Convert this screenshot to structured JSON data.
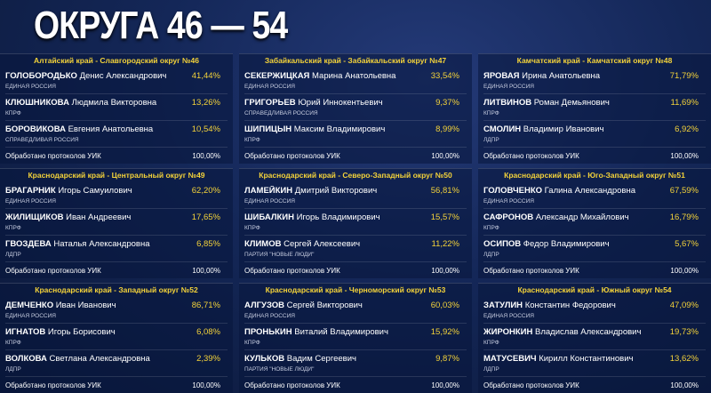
{
  "title": "ОКРУГА 46 — 54",
  "districts": [
    {
      "header": "Алтайский край - Славгородский округ №46",
      "candidates": [
        {
          "surname": "ГОЛОБОРОДЬКО",
          "name": "Денис Александрович",
          "party": "ЕДИНАЯ РОССИЯ",
          "percent": "41,44%"
        },
        {
          "surname": "КЛЮШНИКОВА",
          "name": "Людмила Викторовна",
          "party": "КПРФ",
          "percent": "13,26%"
        },
        {
          "surname": "БОРОВИКОВА",
          "name": "Евгения Анатольевна",
          "party": "СПРАВЕДЛИВАЯ РОССИЯ",
          "percent": "10,54%"
        }
      ],
      "protocols_label": "Обработано протоколов УИК",
      "protocols_value": "100,00%"
    },
    {
      "header": "Забайкальский край - Забайкальский округ №47",
      "candidates": [
        {
          "surname": "СЕКЕРЖИЦКАЯ",
          "name": "Марина Анатольевна",
          "party": "ЕДИНАЯ РОССИЯ",
          "percent": "33,54%"
        },
        {
          "surname": "ГРИГОРЬЕВ",
          "name": "Юрий Иннокентьевич",
          "party": "СПРАВЕДЛИВАЯ РОССИЯ",
          "percent": "9,37%"
        },
        {
          "surname": "ШИПИЦЫН",
          "name": "Максим Владимирович",
          "party": "КПРФ",
          "percent": "8,99%"
        }
      ],
      "protocols_label": "Обработано протоколов УИК",
      "protocols_value": "100,00%"
    },
    {
      "header": "Камчатский край - Камчатский округ №48",
      "candidates": [
        {
          "surname": "ЯРОВАЯ",
          "name": "Ирина Анатольевна",
          "party": "ЕДИНАЯ РОССИЯ",
          "percent": "71,79%"
        },
        {
          "surname": "ЛИТВИНОВ",
          "name": "Роман Демьянович",
          "party": "КПРФ",
          "percent": "11,69%"
        },
        {
          "surname": "СМОЛИН",
          "name": "Владимир Иванович",
          "party": "ЛДПР",
          "percent": "6,92%"
        }
      ],
      "protocols_label": "Обработано протоколов УИК",
      "protocols_value": "100,00%"
    },
    {
      "header": "Краснодарский край - Центральный округ №49",
      "candidates": [
        {
          "surname": "БРАГАРНИК",
          "name": "Игорь Самуилович",
          "party": "ЕДИНАЯ РОССИЯ",
          "percent": "62,20%"
        },
        {
          "surname": "ЖИЛИЩИКОВ",
          "name": "Иван Андреевич",
          "party": "КПРФ",
          "percent": "17,65%"
        },
        {
          "surname": "ГВОЗДЕВА",
          "name": "Наталья Александровна",
          "party": "ЛДПР",
          "percent": "6,85%"
        }
      ],
      "protocols_label": "Обработано протоколов УИК",
      "protocols_value": "100,00%"
    },
    {
      "header": "Краснодарский край - Северо-Западный округ №50",
      "candidates": [
        {
          "surname": "ЛАМЕЙКИН",
          "name": "Дмитрий Викторович",
          "party": "ЕДИНАЯ РОССИЯ",
          "percent": "56,81%"
        },
        {
          "surname": "ШИБАЛКИН",
          "name": "Игорь Владимирович",
          "party": "КПРФ",
          "percent": "15,57%"
        },
        {
          "surname": "КЛИМОВ",
          "name": "Сергей Алексеевич",
          "party": "ПАРТИЯ \"НОВЫЕ ЛЮДИ\"",
          "percent": "11,22%"
        }
      ],
      "protocols_label": "Обработано протоколов УИК",
      "protocols_value": "100,00%"
    },
    {
      "header": "Краснодарский край - Юго-Западный округ №51",
      "candidates": [
        {
          "surname": "ГОЛОВЧЕНКО",
          "name": "Галина Александровна",
          "party": "ЕДИНАЯ РОССИЯ",
          "percent": "67,59%"
        },
        {
          "surname": "САФРОНОВ",
          "name": "Александр Михайлович",
          "party": "КПРФ",
          "percent": "16,79%"
        },
        {
          "surname": "ОСИПОВ",
          "name": "Федор Владимирович",
          "party": "ЛДПР",
          "percent": "5,67%"
        }
      ],
      "protocols_label": "Обработано протоколов УИК",
      "protocols_value": "100,00%"
    },
    {
      "header": "Краснодарский край - Западный округ №52",
      "candidates": [
        {
          "surname": "ДЕМЧЕНКО",
          "name": "Иван Иванович",
          "party": "ЕДИНАЯ РОССИЯ",
          "percent": "86,71%"
        },
        {
          "surname": "ИГНАТОВ",
          "name": "Игорь Борисович",
          "party": "КПРФ",
          "percent": "6,08%"
        },
        {
          "surname": "ВОЛКОВА",
          "name": "Светлана Александровна",
          "party": "ЛДПР",
          "percent": "2,39%"
        }
      ],
      "protocols_label": "Обработано протоколов УИК",
      "protocols_value": "100,00%"
    },
    {
      "header": "Краснодарский край - Черноморский округ №53",
      "candidates": [
        {
          "surname": "АЛГУЗОВ",
          "name": "Сергей Викторович",
          "party": "ЕДИНАЯ РОССИЯ",
          "percent": "60,03%"
        },
        {
          "surname": "ПРОНЬКИН",
          "name": "Виталий Владимирович",
          "party": "КПРФ",
          "percent": "15,92%"
        },
        {
          "surname": "КУЛЬКОВ",
          "name": "Вадим Сергеевич",
          "party": "ПАРТИЯ \"НОВЫЕ ЛЮДИ\"",
          "percent": "9,87%"
        }
      ],
      "protocols_label": "Обработано протоколов УИК",
      "protocols_value": "100,00%"
    },
    {
      "header": "Краснодарский край - Южный округ №54",
      "candidates": [
        {
          "surname": "ЗАТУЛИН",
          "name": "Константин Федорович",
          "party": "ЕДИНАЯ РОССИЯ",
          "percent": "47,09%"
        },
        {
          "surname": "ЖИРОНКИН",
          "name": "Владислав Александрович",
          "party": "КПРФ",
          "percent": "19,73%"
        },
        {
          "surname": "МАТУСЕВИЧ",
          "name": "Кирилл Константинович",
          "party": "ЛДПР",
          "percent": "13,62%"
        }
      ],
      "protocols_label": "Обработано протоколов УИК",
      "protocols_value": "100,00%"
    }
  ]
}
